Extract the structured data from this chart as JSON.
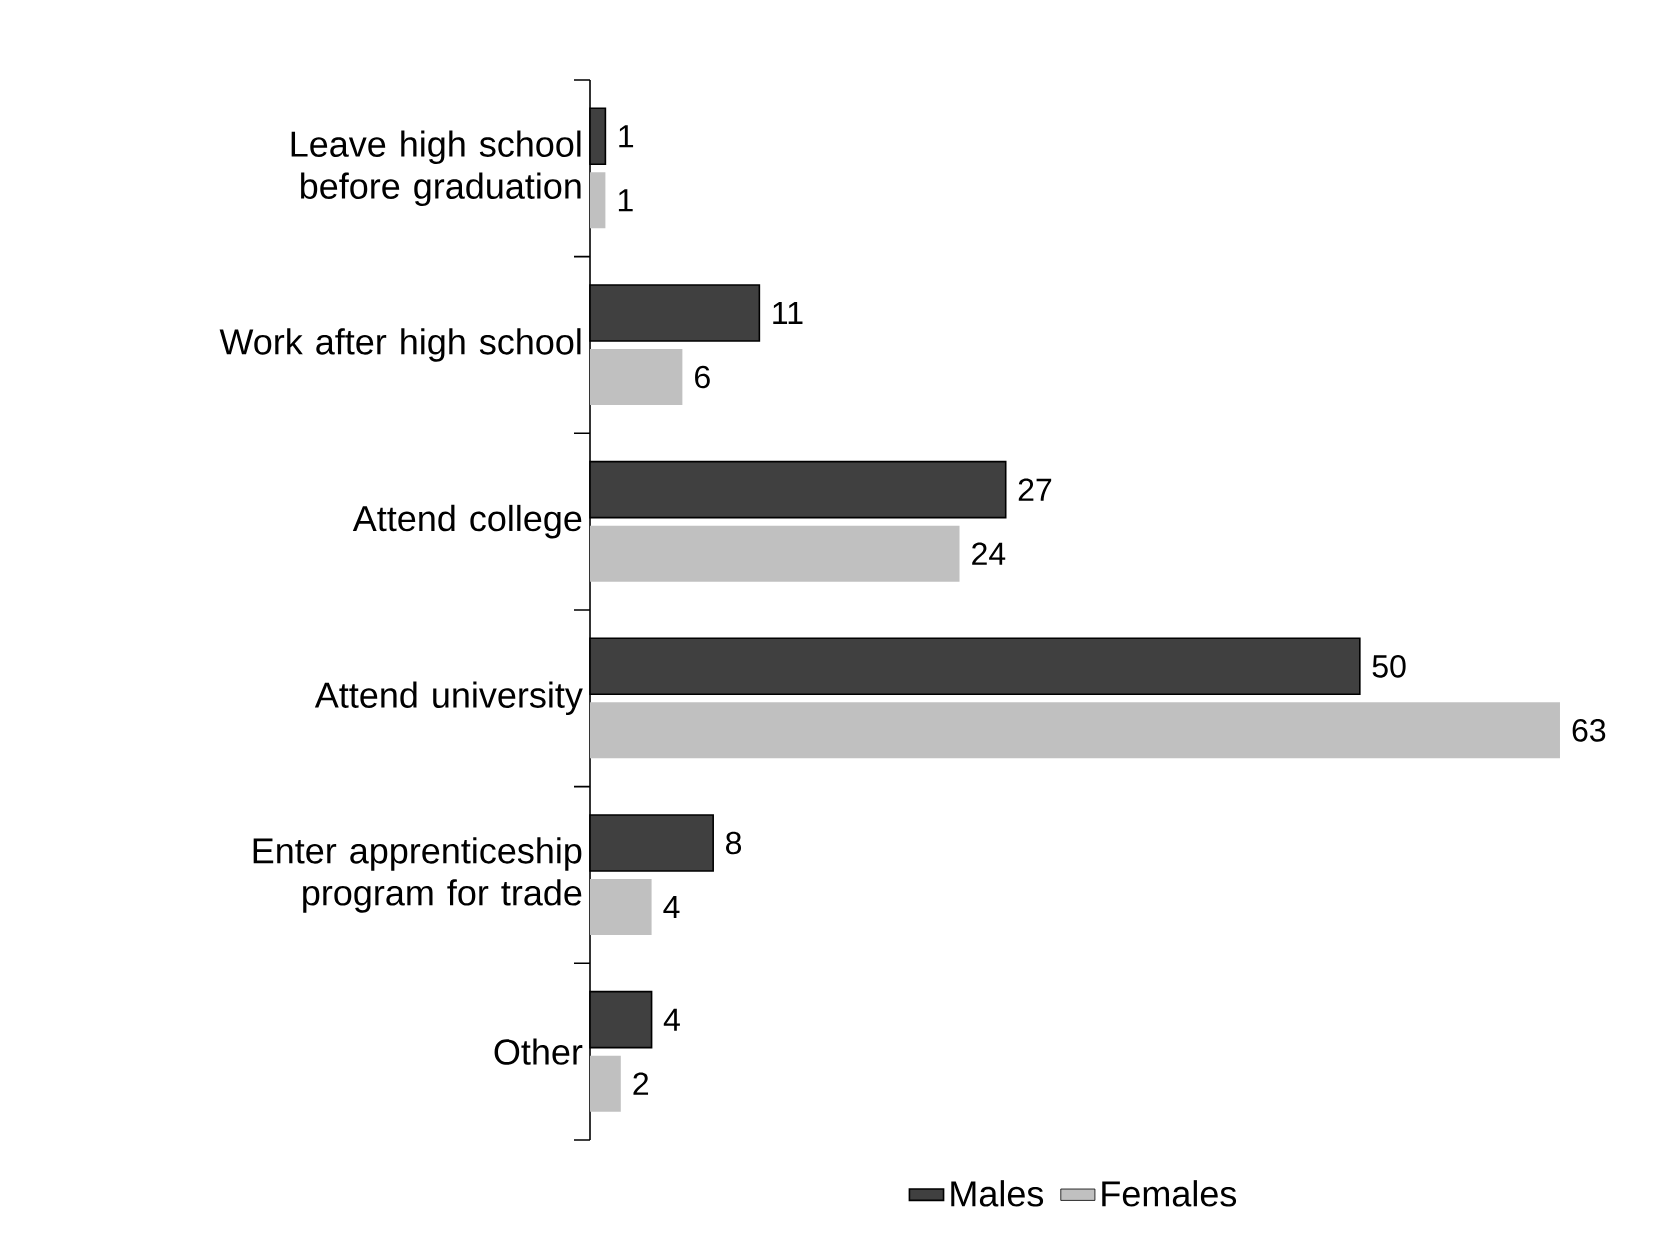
{
  "chart_data": {
    "type": "bar",
    "orientation": "horizontal",
    "data_labels": true,
    "legend": "bottom",
    "categories": [
      "Leave high school before graduation",
      "Work after high school",
      "Attend college",
      "Attend university",
      "Enter apprenticeship program for trade",
      "Other"
    ],
    "series": [
      {
        "name": "Males",
        "color": "#404040",
        "values": [
          1,
          11,
          27,
          50,
          8,
          4
        ]
      },
      {
        "name": "Females",
        "color": "#c0c0c0",
        "values": [
          1,
          6,
          24,
          63,
          4,
          2
        ]
      }
    ]
  }
}
